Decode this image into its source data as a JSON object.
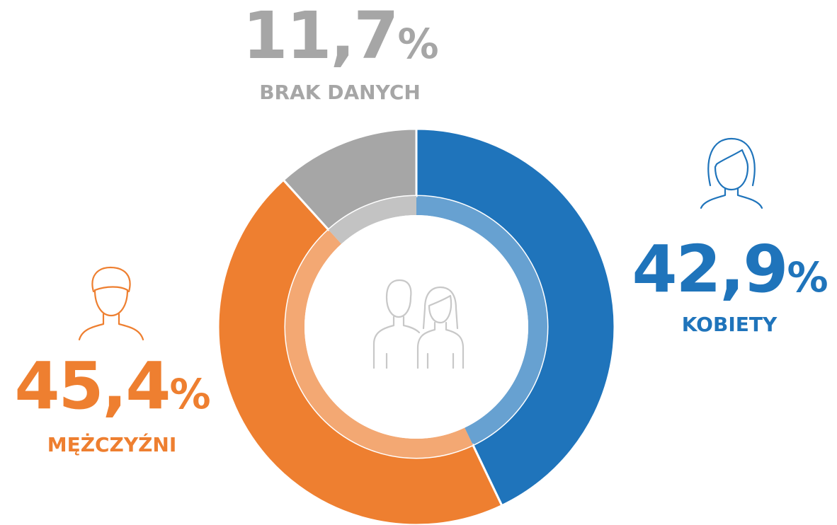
{
  "chart_data": {
    "type": "pie",
    "categories": [
      "KOBIETY",
      "MĘŻCZYŹNI",
      "BRAK DANYCH"
    ],
    "values": [
      42.9,
      45.4,
      11.7
    ],
    "value_labels": [
      "42,9%",
      "45,4%",
      "11,7%"
    ],
    "colors": [
      "#1f74bb",
      "#ee7f30",
      "#a6a6a6"
    ]
  }
}
